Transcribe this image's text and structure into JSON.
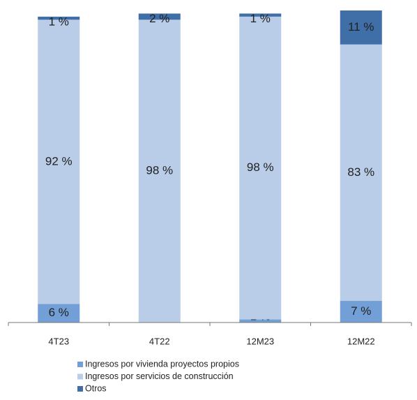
{
  "chart_data": {
    "type": "stacked_bar",
    "categories": [
      "4T23",
      "4T22",
      "12M23",
      "12M22"
    ],
    "series": [
      {
        "name": "Ingresos por vivienda proyectos propios",
        "color": "#729fd6",
        "values": [
          6,
          0,
          1,
          7
        ],
        "value_labels": [
          "6 %",
          "-",
          "1 %",
          "7 %"
        ]
      },
      {
        "name": "Ingresos por servicios de construcción",
        "color": "#b9cde8",
        "values": [
          92,
          98,
          98,
          83
        ],
        "value_labels": [
          "92 %",
          "98 %",
          "98 %",
          "83 %"
        ]
      },
      {
        "name": "Otros",
        "color": "#3f6fa6",
        "values": [
          1,
          2,
          1,
          11
        ],
        "value_labels": [
          "1 %",
          "2 %",
          "1 %",
          "11 %"
        ]
      }
    ]
  }
}
